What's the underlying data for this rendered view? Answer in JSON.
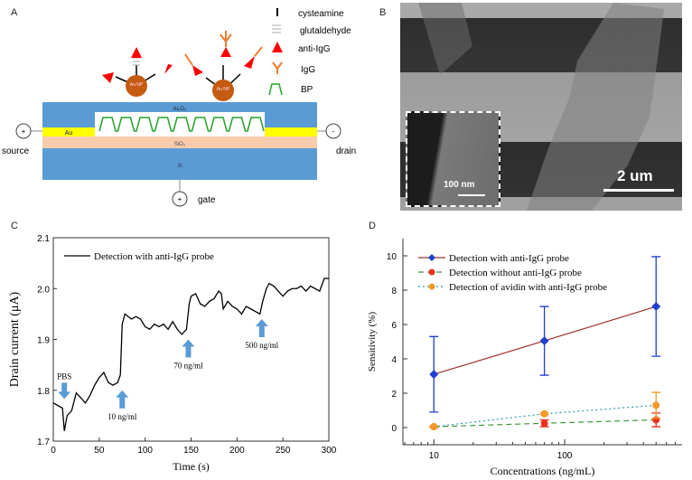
{
  "panel_labels": {
    "a": "A",
    "b": "B",
    "c": "C",
    "d": "D"
  },
  "panel_a": {
    "legend": [
      "cysteamine",
      "glutaldehyde",
      "anti-IgG",
      "IgG",
      "BP"
    ],
    "layers": {
      "al2o3": "Al₂O₃",
      "au": "Au",
      "sio2": "SiO₂",
      "si": "Si"
    },
    "nanoparticle": "Au NP",
    "terminals": {
      "source": "source",
      "drain": "drain",
      "gate": "gate",
      "source_sign": "+",
      "drain_sign": "-",
      "gate_sign": "+"
    },
    "colors": {
      "substrate": "#5b9bd5",
      "gold": "#ffff00",
      "sio2": "#f8cbad",
      "np": "#c55a11",
      "antibody": "#ff0000",
      "igg": "#ed7d31",
      "bp": "#22a22a"
    }
  },
  "panel_b": {
    "scale_bar": "2 um",
    "inset_scale_bar": "100 nm"
  },
  "chart_data": [
    {
      "type": "line",
      "xlabel": "Time (s)",
      "ylabel": "Drain current (μA)",
      "xlim": [
        0,
        300
      ],
      "ylim": [
        1.7,
        2.1
      ],
      "xticks": [
        0,
        50,
        100,
        150,
        200,
        250,
        300
      ],
      "yticks": [
        1.7,
        1.8,
        1.9,
        2.0,
        2.1
      ],
      "legend": "top-left",
      "series": [
        {
          "name": "Detection with anti-IgG probe",
          "color": "#000000",
          "x": [
            0,
            5,
            10,
            12,
            15,
            20,
            25,
            30,
            35,
            40,
            45,
            50,
            55,
            60,
            65,
            70,
            73,
            75,
            78,
            85,
            90,
            95,
            100,
            105,
            110,
            115,
            120,
            125,
            130,
            135,
            140,
            145,
            148,
            150,
            155,
            160,
            165,
            170,
            175,
            180,
            183,
            185,
            190,
            195,
            200,
            205,
            210,
            215,
            220,
            225,
            228,
            232,
            235,
            240,
            245,
            250,
            255,
            260,
            265,
            270,
            275,
            280,
            285,
            290,
            295,
            300
          ],
          "y": [
            1.775,
            1.77,
            1.765,
            1.72,
            1.75,
            1.76,
            1.795,
            1.785,
            1.775,
            1.79,
            1.81,
            1.825,
            1.835,
            1.815,
            1.81,
            1.815,
            1.83,
            1.93,
            1.95,
            1.94,
            1.945,
            1.94,
            1.925,
            1.92,
            1.93,
            1.925,
            1.93,
            1.92,
            1.935,
            1.92,
            1.91,
            1.92,
            1.97,
            1.985,
            1.99,
            1.97,
            1.965,
            1.975,
            1.98,
            1.995,
            1.99,
            1.96,
            1.975,
            1.965,
            1.96,
            1.95,
            1.965,
            1.96,
            1.955,
            1.95,
            1.975,
            2.0,
            2.01,
            2.005,
            1.995,
            1.985,
            1.995,
            2.0,
            2.0,
            2.005,
            1.995,
            2.005,
            2.0,
            1.995,
            2.02,
            2.02
          ]
        }
      ],
      "annotations": [
        {
          "text": "PBS",
          "x": 12,
          "y": 1.79,
          "arrow": "down"
        },
        {
          "text": "10 ng/ml",
          "x": 75,
          "y": 1.8,
          "arrow": "up"
        },
        {
          "text": "70 ng/ml",
          "x": 147,
          "y": 1.9,
          "arrow": "up"
        },
        {
          "text": "500 ng/ml",
          "x": 227,
          "y": 1.94,
          "arrow": "up"
        }
      ],
      "arrow_color": "#5b9bd5"
    },
    {
      "type": "scatter",
      "xlabel": "Concentrations (ng/mL)",
      "ylabel": "Sensitivity (%)",
      "xscale": "log",
      "xlim": [
        5.8,
        790
      ],
      "ylim": [
        -1,
        11
      ],
      "xticks": [
        10,
        100
      ],
      "yticks": [
        0,
        2,
        4,
        6,
        8,
        10
      ],
      "legend": "top-left",
      "series": [
        {
          "name": "Detection with anti-IgG probe",
          "x": [
            10,
            70,
            500
          ],
          "y": [
            3.1,
            5.05,
            7.05
          ],
          "err": [
            2.2,
            2.0,
            2.9
          ],
          "marker": "diamond",
          "marker_color": "#1f3fd0",
          "line_color": "#a0302a",
          "line": "solid"
        },
        {
          "name": "Detection without anti-IgG probe",
          "x": [
            10,
            70,
            500
          ],
          "y": [
            0.05,
            0.25,
            0.45
          ],
          "err": [
            0.05,
            0.2,
            0.4
          ],
          "marker": "circle",
          "marker_color": "#e8321e",
          "line_color": "#3a9a3a",
          "line": "dashed"
        },
        {
          "name": "Detection of avidin with anti-IgG probe",
          "x": [
            10,
            70,
            500
          ],
          "y": [
            0.05,
            0.8,
            1.3
          ],
          "err": [
            0.05,
            0.05,
            0.75
          ],
          "marker": "circle",
          "marker_color": "#f39a2a",
          "line_color": "#2aa0b0",
          "line": "dotted"
        }
      ]
    }
  ]
}
